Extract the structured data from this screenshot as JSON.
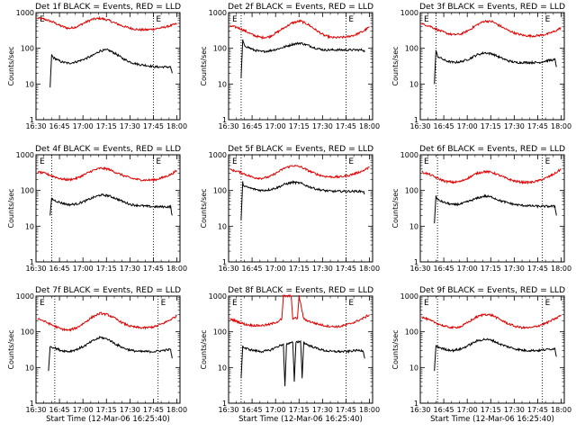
{
  "figure": {
    "background": "#ffffff",
    "event_color": "#000000",
    "lld_color": "#e00000"
  },
  "chart_data": [
    {
      "type": "line",
      "title": "Det 1f BLACK = Events, RED = LLD",
      "xlabel": "",
      "ylabel": "Counts/sec",
      "yscale": "log",
      "ylim": [
        1,
        1000
      ],
      "xticks": [
        "16:30",
        "16:45",
        "17:00",
        "17:15",
        "17:30",
        "17:45",
        "18:00"
      ],
      "markers": [
        "17:45"
      ],
      "marker_label": "E",
      "series": [
        {
          "x": [
            "16:31",
            "16:36",
            "16:41",
            "16:46",
            "16:51",
            "16:56",
            "17:01",
            "17:06",
            "17:11",
            "17:16",
            "17:21",
            "17:26",
            "17:31",
            "17:36",
            "17:41",
            "17:46",
            "17:51",
            "17:56",
            "18:00"
          ],
          "values": [
            700,
            640,
            540,
            420,
            360,
            400,
            520,
            650,
            690,
            620,
            500,
            410,
            360,
            330,
            330,
            350,
            380,
            430,
            490
          ]
        },
        {
          "x": [
            "16:39",
            "16:40",
            "16:41",
            "16:46",
            "16:51",
            "16:56",
            "17:01",
            "17:06",
            "17:11",
            "17:16",
            "17:21",
            "17:26",
            "17:31",
            "17:36",
            "17:41",
            "17:46",
            "17:51",
            "17:56",
            "17:57"
          ],
          "values": [
            8,
            65,
            55,
            42,
            38,
            42,
            50,
            62,
            85,
            90,
            70,
            50,
            40,
            35,
            33,
            30,
            30,
            30,
            20
          ]
        }
      ]
    },
    {
      "type": "line",
      "title": "Det 2f BLACK = Events, RED = LLD",
      "xlabel": "",
      "ylabel": "Counts/sec",
      "yscale": "log",
      "ylim": [
        1,
        1000
      ],
      "xticks": [
        "16:30",
        "16:45",
        "17:00",
        "17:15",
        "17:30",
        "17:45",
        "18:00"
      ],
      "markers": [
        "16:38",
        "17:45"
      ],
      "marker_label": "E",
      "series": [
        {
          "x": [
            "16:31",
            "16:36",
            "16:41",
            "16:46",
            "16:51",
            "16:56",
            "17:01",
            "17:06",
            "17:11",
            "17:16",
            "17:21",
            "17:26",
            "17:31",
            "17:36",
            "17:41",
            "17:46",
            "17:51",
            "17:56",
            "18:00"
          ],
          "values": [
            420,
            380,
            300,
            230,
            200,
            210,
            280,
            390,
            520,
            580,
            460,
            320,
            230,
            200,
            200,
            210,
            240,
            300,
            400
          ]
        },
        {
          "x": [
            "16:38",
            "16:39",
            "16:40",
            "16:46",
            "16:51",
            "16:56",
            "17:01",
            "17:06",
            "17:11",
            "17:16",
            "17:21",
            "17:26",
            "17:31",
            "17:36",
            "17:41",
            "17:46",
            "17:51",
            "17:56",
            "17:57"
          ],
          "values": [
            15,
            170,
            120,
            90,
            80,
            85,
            95,
            110,
            130,
            140,
            120,
            100,
            90,
            90,
            90,
            90,
            90,
            90,
            80
          ]
        }
      ]
    },
    {
      "type": "line",
      "title": "Det 3f BLACK = Events, RED = LLD",
      "xlabel": "",
      "ylabel": "Counts/sec",
      "yscale": "log",
      "ylim": [
        1,
        1000
      ],
      "xticks": [
        "16:30",
        "16:45",
        "17:00",
        "17:15",
        "17:30",
        "17:45",
        "18:00"
      ],
      "markers": [
        "16:40",
        "17:48"
      ],
      "marker_label": "E",
      "series": [
        {
          "x": [
            "16:31",
            "16:36",
            "16:41",
            "16:46",
            "16:51",
            "16:56",
            "17:01",
            "17:06",
            "17:11",
            "17:16",
            "17:21",
            "17:26",
            "17:31",
            "17:36",
            "17:41",
            "17:46",
            "17:51",
            "17:56",
            "18:00"
          ],
          "values": [
            480,
            420,
            330,
            270,
            240,
            250,
            320,
            450,
            580,
            560,
            420,
            320,
            260,
            230,
            220,
            230,
            250,
            300,
            380
          ]
        },
        {
          "x": [
            "16:39",
            "16:40",
            "16:41",
            "16:46",
            "16:51",
            "16:56",
            "17:01",
            "17:06",
            "17:11",
            "17:16",
            "17:21",
            "17:26",
            "17:31",
            "17:36",
            "17:41",
            "17:46",
            "17:51",
            "17:56",
            "17:57"
          ],
          "values": [
            10,
            85,
            60,
            45,
            40,
            42,
            50,
            65,
            75,
            70,
            55,
            45,
            40,
            40,
            40,
            40,
            45,
            48,
            30
          ]
        }
      ]
    },
    {
      "type": "line",
      "title": "Det 4f BLACK = Events, RED = LLD",
      "xlabel": "",
      "ylabel": "Counts/sec",
      "yscale": "log",
      "ylim": [
        1,
        1000
      ],
      "xticks": [
        "16:30",
        "16:45",
        "17:00",
        "17:15",
        "17:30",
        "17:45",
        "18:00"
      ],
      "markers": [
        "16:40",
        "17:45"
      ],
      "marker_label": "E",
      "series": [
        {
          "x": [
            "16:31",
            "16:36",
            "16:41",
            "16:46",
            "16:51",
            "16:56",
            "17:01",
            "17:06",
            "17:11",
            "17:16",
            "17:21",
            "17:26",
            "17:31",
            "17:36",
            "17:41",
            "17:46",
            "17:51",
            "17:56",
            "18:00"
          ],
          "values": [
            330,
            300,
            250,
            210,
            200,
            220,
            280,
            360,
            420,
            400,
            320,
            260,
            220,
            200,
            195,
            200,
            230,
            280,
            360
          ]
        },
        {
          "x": [
            "16:39",
            "16:40",
            "16:41",
            "16:46",
            "16:51",
            "16:56",
            "17:01",
            "17:06",
            "17:11",
            "17:16",
            "17:21",
            "17:26",
            "17:31",
            "17:36",
            "17:41",
            "17:46",
            "17:51",
            "17:56",
            "17:57"
          ],
          "values": [
            20,
            60,
            55,
            45,
            40,
            42,
            50,
            62,
            75,
            72,
            60,
            48,
            40,
            38,
            36,
            35,
            35,
            35,
            20
          ]
        }
      ]
    },
    {
      "type": "line",
      "title": "Det 5f BLACK = Events, RED = LLD",
      "xlabel": "",
      "ylabel": "Counts/sec",
      "yscale": "log",
      "ylim": [
        1,
        1000
      ],
      "xticks": [
        "16:30",
        "16:45",
        "17:00",
        "17:15",
        "17:30",
        "17:45",
        "18:00"
      ],
      "markers": [
        "16:38",
        "17:45"
      ],
      "marker_label": "E",
      "series": [
        {
          "x": [
            "16:31",
            "16:36",
            "16:41",
            "16:46",
            "16:51",
            "16:56",
            "17:01",
            "17:06",
            "17:11",
            "17:16",
            "17:21",
            "17:26",
            "17:31",
            "17:36",
            "17:41",
            "17:46",
            "17:51",
            "17:56",
            "18:00"
          ],
          "values": [
            380,
            340,
            280,
            230,
            220,
            240,
            320,
            430,
            500,
            460,
            360,
            290,
            250,
            240,
            240,
            260,
            300,
            360,
            450
          ]
        },
        {
          "x": [
            "16:38",
            "16:39",
            "16:40",
            "16:46",
            "16:51",
            "16:56",
            "17:01",
            "17:06",
            "17:11",
            "17:16",
            "17:21",
            "17:26",
            "17:31",
            "17:36",
            "17:41",
            "17:46",
            "17:51",
            "17:56",
            "17:57"
          ],
          "values": [
            15,
            170,
            130,
            110,
            100,
            105,
            120,
            150,
            170,
            160,
            130,
            110,
            100,
            95,
            95,
            95,
            95,
            95,
            80
          ]
        }
      ]
    },
    {
      "type": "line",
      "title": "Det 6f BLACK = Events, RED = LLD",
      "xlabel": "",
      "ylabel": "Counts/sec",
      "yscale": "log",
      "ylim": [
        1,
        1000
      ],
      "xticks": [
        "16:30",
        "16:45",
        "17:00",
        "17:15",
        "17:30",
        "17:45",
        "18:00"
      ],
      "markers": [
        "16:41",
        "17:48"
      ],
      "marker_label": "E",
      "series": [
        {
          "x": [
            "16:31",
            "16:36",
            "16:41",
            "16:46",
            "16:51",
            "16:56",
            "17:01",
            "17:06",
            "17:11",
            "17:16",
            "17:21",
            "17:26",
            "17:31",
            "17:36",
            "17:41",
            "17:46",
            "17:51",
            "17:56",
            "18:00"
          ],
          "values": [
            330,
            280,
            220,
            180,
            170,
            180,
            230,
            300,
            340,
            320,
            260,
            210,
            180,
            170,
            170,
            190,
            230,
            300,
            400
          ]
        },
        {
          "x": [
            "16:39",
            "16:40",
            "16:41",
            "16:46",
            "16:51",
            "16:56",
            "17:01",
            "17:06",
            "17:11",
            "17:16",
            "17:21",
            "17:26",
            "17:31",
            "17:36",
            "17:41",
            "17:46",
            "17:51",
            "17:56",
            "17:57"
          ],
          "values": [
            12,
            70,
            55,
            45,
            40,
            42,
            50,
            60,
            70,
            65,
            52,
            45,
            40,
            38,
            37,
            36,
            36,
            36,
            20
          ]
        }
      ]
    },
    {
      "type": "line",
      "title": "Det 7f BLACK = Events, RED = LLD",
      "xlabel": "Start Time (12-Mar-06 16:25:40)",
      "ylabel": "Counts/sec",
      "yscale": "log",
      "ylim": [
        1,
        1000
      ],
      "xticks": [
        "16:30",
        "16:45",
        "17:00",
        "17:15",
        "17:30",
        "17:45",
        "18:00"
      ],
      "markers": [
        "16:42",
        "17:48"
      ],
      "marker_label": "E",
      "series": [
        {
          "x": [
            "16:31",
            "16:36",
            "16:41",
            "16:46",
            "16:51",
            "16:56",
            "17:01",
            "17:06",
            "17:11",
            "17:16",
            "17:21",
            "17:26",
            "17:31",
            "17:36",
            "17:41",
            "17:46",
            "17:51",
            "17:56",
            "18:00"
          ],
          "values": [
            240,
            190,
            150,
            120,
            110,
            130,
            180,
            260,
            330,
            300,
            230,
            170,
            140,
            130,
            130,
            140,
            170,
            220,
            280
          ]
        },
        {
          "x": [
            "16:38",
            "16:39",
            "16:40",
            "16:46",
            "16:51",
            "16:56",
            "17:01",
            "17:06",
            "17:11",
            "17:16",
            "17:21",
            "17:26",
            "17:31",
            "17:36",
            "17:41",
            "17:46",
            "17:51",
            "17:56",
            "17:57"
          ],
          "values": [
            8,
            40,
            38,
            30,
            28,
            32,
            40,
            55,
            70,
            62,
            45,
            35,
            30,
            28,
            28,
            28,
            30,
            32,
            18
          ]
        }
      ]
    },
    {
      "type": "line",
      "title": "Det 8f BLACK = Events, RED = LLD",
      "xlabel": "Start Time (12-Mar-06 16:25:40)",
      "ylabel": "Counts/sec",
      "yscale": "log",
      "ylim": [
        1,
        1000
      ],
      "xticks": [
        "16:30",
        "16:45",
        "17:00",
        "17:15",
        "17:30",
        "17:45",
        "18:00"
      ],
      "markers": [
        "16:38",
        "17:45"
      ],
      "marker_label": "E",
      "series": [
        {
          "x": [
            "16:31",
            "16:36",
            "16:41",
            "16:46",
            "16:51",
            "16:56",
            "17:01",
            "17:04",
            "17:05",
            "17:10",
            "17:11",
            "17:14",
            "17:15",
            "17:18",
            "17:21",
            "17:26",
            "17:31",
            "17:36",
            "17:41",
            "17:46",
            "17:51",
            "17:56",
            "18:00"
          ],
          "values": [
            230,
            190,
            160,
            150,
            150,
            160,
            190,
            230,
            1000,
            1000,
            240,
            240,
            1000,
            230,
            200,
            170,
            150,
            140,
            140,
            160,
            190,
            240,
            300
          ]
        },
        {
          "x": [
            "16:38",
            "16:39",
            "16:40",
            "16:46",
            "16:51",
            "16:56",
            "17:01",
            "17:05",
            "17:06",
            "17:07",
            "17:11",
            "17:12",
            "17:13",
            "17:16",
            "17:17",
            "17:18",
            "17:21",
            "17:26",
            "17:31",
            "17:36",
            "17:41",
            "17:46",
            "17:51",
            "17:56",
            "17:57"
          ],
          "values": [
            5,
            40,
            35,
            30,
            28,
            30,
            38,
            45,
            3,
            45,
            50,
            4,
            50,
            55,
            5,
            50,
            42,
            35,
            30,
            28,
            28,
            28,
            30,
            30,
            18
          ]
        }
      ]
    },
    {
      "type": "line",
      "title": "Det 9f BLACK = Events, RED = LLD",
      "xlabel": "Start Time (12-Mar-06 16:25:40)",
      "ylabel": "Counts/sec",
      "yscale": "log",
      "ylim": [
        1,
        1000
      ],
      "xticks": [
        "16:30",
        "16:45",
        "17:00",
        "17:15",
        "17:30",
        "17:45",
        "18:00"
      ],
      "markers": [
        "16:41",
        "17:48"
      ],
      "marker_label": "E",
      "series": [
        {
          "x": [
            "16:31",
            "16:36",
            "16:41",
            "16:46",
            "16:51",
            "16:56",
            "17:01",
            "17:06",
            "17:11",
            "17:16",
            "17:21",
            "17:26",
            "17:31",
            "17:36",
            "17:41",
            "17:46",
            "17:51",
            "17:56",
            "18:00"
          ],
          "values": [
            260,
            210,
            170,
            140,
            130,
            140,
            190,
            260,
            310,
            290,
            220,
            170,
            140,
            130,
            130,
            150,
            180,
            230,
            290
          ]
        },
        {
          "x": [
            "16:39",
            "16:40",
            "16:41",
            "16:46",
            "16:51",
            "16:56",
            "17:01",
            "17:06",
            "17:11",
            "17:16",
            "17:21",
            "17:26",
            "17:31",
            "17:36",
            "17:41",
            "17:46",
            "17:51",
            "17:56",
            "17:57"
          ],
          "values": [
            8,
            40,
            38,
            32,
            30,
            33,
            42,
            55,
            62,
            58,
            45,
            38,
            33,
            30,
            30,
            30,
            32,
            34,
            20
          ]
        }
      ]
    }
  ]
}
